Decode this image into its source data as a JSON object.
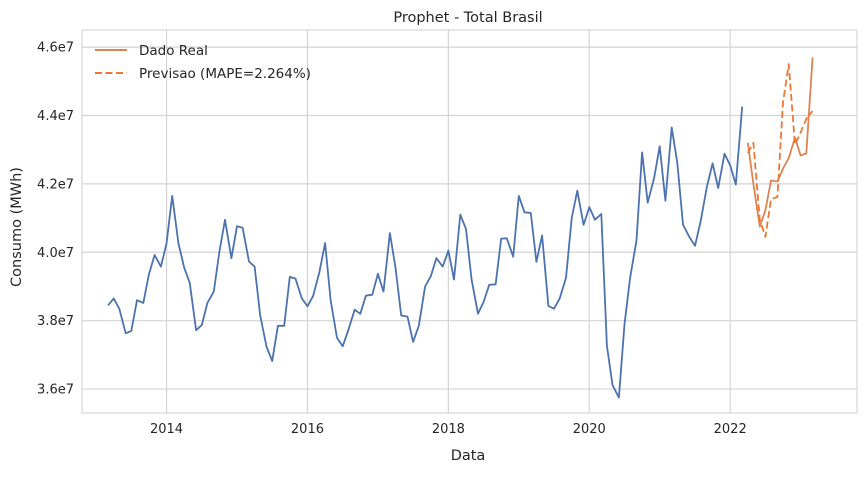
{
  "chart_data": {
    "type": "line",
    "title": "Prophet - Total Brasil",
    "xlabel": "Data",
    "ylabel": "Consumo (MWh)",
    "xlim": [
      2012.8,
      2023.8
    ],
    "ylim": [
      35300000,
      46500000
    ],
    "x_ticks": [
      2014,
      2016,
      2018,
      2020,
      2022
    ],
    "x_tick_labels": [
      "2014",
      "2016",
      "2018",
      "2020",
      "2022"
    ],
    "y_ticks": [
      36000000,
      38000000,
      40000000,
      42000000,
      44000000,
      46000000
    ],
    "y_tick_labels": [
      "3.6e7",
      "3.8e7",
      "4.0e7",
      "4.2e7",
      "4.4e7",
      "4.6e7"
    ],
    "grid": true,
    "legend_position": "top-left",
    "colors": {
      "history": "#4c72b0",
      "real": "#dd8452",
      "forecast": "#ee7733",
      "grid": "#d4d4d4",
      "frame": "#cfcfcf"
    },
    "series": [
      {
        "style": "solid",
        "x": [
          2013.17,
          2013.25,
          2013.33,
          2013.42,
          2013.5,
          2013.58,
          2013.67,
          2013.75,
          2013.83,
          2013.92,
          2014.0,
          2014.08,
          2014.17,
          2014.25,
          2014.33,
          2014.42,
          2014.5,
          2014.58,
          2014.67,
          2014.75,
          2014.83,
          2014.92,
          2015.0,
          2015.08,
          2015.17,
          2015.25,
          2015.33,
          2015.42,
          2015.5,
          2015.58,
          2015.67,
          2015.75,
          2015.83,
          2015.92,
          2016.0,
          2016.08,
          2016.17,
          2016.25,
          2016.33,
          2016.42,
          2016.5,
          2016.58,
          2016.67,
          2016.75,
          2016.83,
          2016.92,
          2017.0,
          2017.08,
          2017.17,
          2017.25,
          2017.33,
          2017.42,
          2017.5,
          2017.58,
          2017.67,
          2017.75,
          2017.83,
          2017.92,
          2018.0,
          2018.08,
          2018.17,
          2018.25,
          2018.33,
          2018.42,
          2018.5,
          2018.58,
          2018.67,
          2018.75,
          2018.83,
          2018.92,
          2019.0,
          2019.08,
          2019.17,
          2019.25,
          2019.33,
          2019.42,
          2019.5,
          2019.58,
          2019.67,
          2019.75,
          2019.83,
          2019.92,
          2020.0,
          2020.08,
          2020.17,
          2020.25,
          2020.33,
          2020.42,
          2020.5,
          2020.58,
          2020.67,
          2020.75,
          2020.83,
          2020.92,
          2021.0,
          2021.08,
          2021.17,
          2021.25,
          2021.33,
          2021.42,
          2021.5,
          2021.58,
          2021.67,
          2021.75,
          2021.83,
          2021.92,
          2022.0,
          2022.08,
          2022.17
        ],
        "y": [
          38450000,
          38650000,
          38350000,
          37630000,
          37700000,
          38600000,
          38520000,
          39350000,
          39920000,
          39580000,
          40250000,
          41650000,
          40250000,
          39550000,
          39100000,
          37720000,
          37870000,
          38520000,
          38850000,
          40020000,
          40950000,
          39830000,
          40760000,
          40720000,
          39730000,
          39580000,
          38150000,
          37230000,
          36820000,
          37850000,
          37850000,
          39280000,
          39230000,
          38650000,
          38420000,
          38720000,
          39420000,
          40270000,
          38580000,
          37500000,
          37250000,
          37720000,
          38320000,
          38200000,
          38730000,
          38760000,
          39370000,
          38850000,
          40560000,
          39550000,
          38150000,
          38120000,
          37380000,
          37850000,
          39000000,
          39300000,
          39830000,
          39580000,
          40050000,
          39200000,
          41100000,
          40680000,
          39200000,
          38200000,
          38550000,
          39050000,
          39060000,
          40400000,
          40410000,
          39870000,
          41650000,
          41170000,
          41150000,
          39720000,
          40490000,
          38430000,
          38350000,
          38650000,
          39250000,
          41000000,
          41800000,
          40800000,
          41320000,
          40950000,
          41120000,
          37270000,
          36120000,
          35750000,
          37900000,
          39250000,
          40350000,
          42920000,
          41450000,
          42170000,
          43100000,
          41510000,
          43650000,
          42620000,
          40810000,
          40450000,
          40190000,
          40900000,
          41920000,
          42600000,
          41880000,
          42880000,
          42540000,
          41980000,
          44260000
        ]
      },
      {
        "name": "Dado Real",
        "style": "solid",
        "x": [
          2022.25,
          2022.33,
          2022.42,
          2022.5,
          2022.58,
          2022.67,
          2022.75,
          2022.83,
          2022.92,
          2023.0,
          2023.08,
          2023.17
        ],
        "y": [
          43200000,
          42000000,
          40750000,
          41230000,
          42100000,
          42070000,
          42450000,
          42750000,
          43350000,
          42830000,
          42890000,
          45700000
        ]
      },
      {
        "name": "Previsao (MAPE=2.264%)",
        "style": "dashed",
        "x": [
          2022.25,
          2022.33,
          2022.42,
          2022.5,
          2022.58,
          2022.67,
          2022.75,
          2022.83,
          2022.92,
          2023.0,
          2023.08,
          2023.17
        ],
        "y": [
          42900000,
          43200000,
          40950000,
          40450000,
          41550000,
          41620000,
          44380000,
          45500000,
          43150000,
          43500000,
          43900000,
          44130000
        ]
      }
    ]
  }
}
